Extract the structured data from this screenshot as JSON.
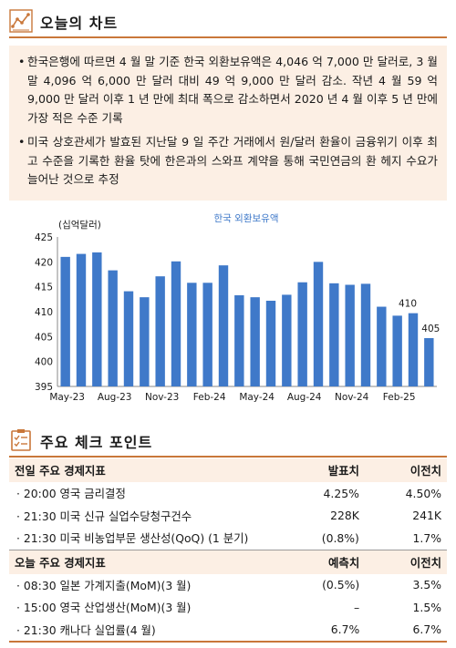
{
  "header1": {
    "title": "오늘의 차트"
  },
  "summary": [
    "한국은행에 따르면 4 월 말 기준 한국 외환보유액은 4,046 억 7,000 만 달러로, 3 월 말 4,096 억 6,000 만 달러 대비 49 억 9,000 만 달러 감소. 작년 4 월 59 억 9,000 만 달러 이후 1 년 만에 최대 폭으로 감소하면서 2020 년 4 월 이후 5 년 만에 가장 적은 수준 기록",
    "미국 상호관세가 발효된 지난달 9 일 주간 거래에서 원/달러 환율이 금융위기 이후 최고 수준을 기록한 환율 탓에 한은과의 스와프 계약을 통해 국민연금의 환 헤지 수요가 늘어난 것으로 추정"
  ],
  "chart_data": {
    "type": "bar",
    "title": "한국 외환보유액",
    "ylabel": "(십억달러)",
    "ylim": [
      395,
      425
    ],
    "yticks": [
      395,
      400,
      405,
      410,
      415,
      420,
      425
    ],
    "categories": [
      "May-23",
      "Jun-23",
      "Jul-23",
      "Aug-23",
      "Sep-23",
      "Oct-23",
      "Nov-23",
      "Dec-23",
      "Jan-24",
      "Feb-24",
      "Mar-24",
      "Apr-24",
      "May-24",
      "Jun-24",
      "Jul-24",
      "Aug-24",
      "Sep-24",
      "Oct-24",
      "Nov-24",
      "Dec-24",
      "Jan-25",
      "Feb-25",
      "Mar-25",
      "Apr-25"
    ],
    "xtick_labels": [
      "May-23",
      "Aug-23",
      "Nov-23",
      "Feb-24",
      "May-24",
      "Aug-24",
      "Nov-24",
      "Feb-25"
    ],
    "values": [
      421.0,
      421.6,
      421.9,
      418.3,
      414.1,
      412.9,
      417.1,
      420.1,
      415.8,
      415.8,
      419.3,
      413.3,
      412.9,
      412.2,
      413.4,
      415.9,
      420.0,
      415.7,
      415.4,
      415.6,
      411.0,
      409.2,
      409.7,
      404.7
    ],
    "data_labels": [
      {
        "index": 22,
        "text": "410"
      },
      {
        "index": 23,
        "text": "405"
      }
    ],
    "bar_color": "#3f79c9",
    "title_color": "#3f79c9"
  },
  "header2": {
    "title": "주요 체크 포인트"
  },
  "table_yesterday": {
    "headers": [
      "전일 주요 경제지표",
      "발표치",
      "이전치"
    ],
    "rows": [
      [
        "· 20:00 영국 금리결정",
        "4.25%",
        "4.50%"
      ],
      [
        "· 21:30 미국 신규 실업수당청구건수",
        "228K",
        "241K"
      ],
      [
        "· 21:30 미국 비농업부문 생산성(QoQ) (1 분기)",
        "(0.8%)",
        "1.7%"
      ]
    ]
  },
  "table_today": {
    "headers": [
      "오늘 주요 경제지표",
      "예측치",
      "이전치"
    ],
    "rows": [
      [
        "· 08:30 일본 가계지출(MoM)(3 월)",
        "(0.5%)",
        "3.5%"
      ],
      [
        "· 15:00 영국 산업생산(MoM)(3 월)",
        "–",
        "1.5%"
      ],
      [
        "· 21:30 캐나다 실업률(4 월)",
        "6.7%",
        "6.7%"
      ]
    ]
  },
  "colors": {
    "accent": "#c9773a",
    "panel": "#fcefe4"
  }
}
